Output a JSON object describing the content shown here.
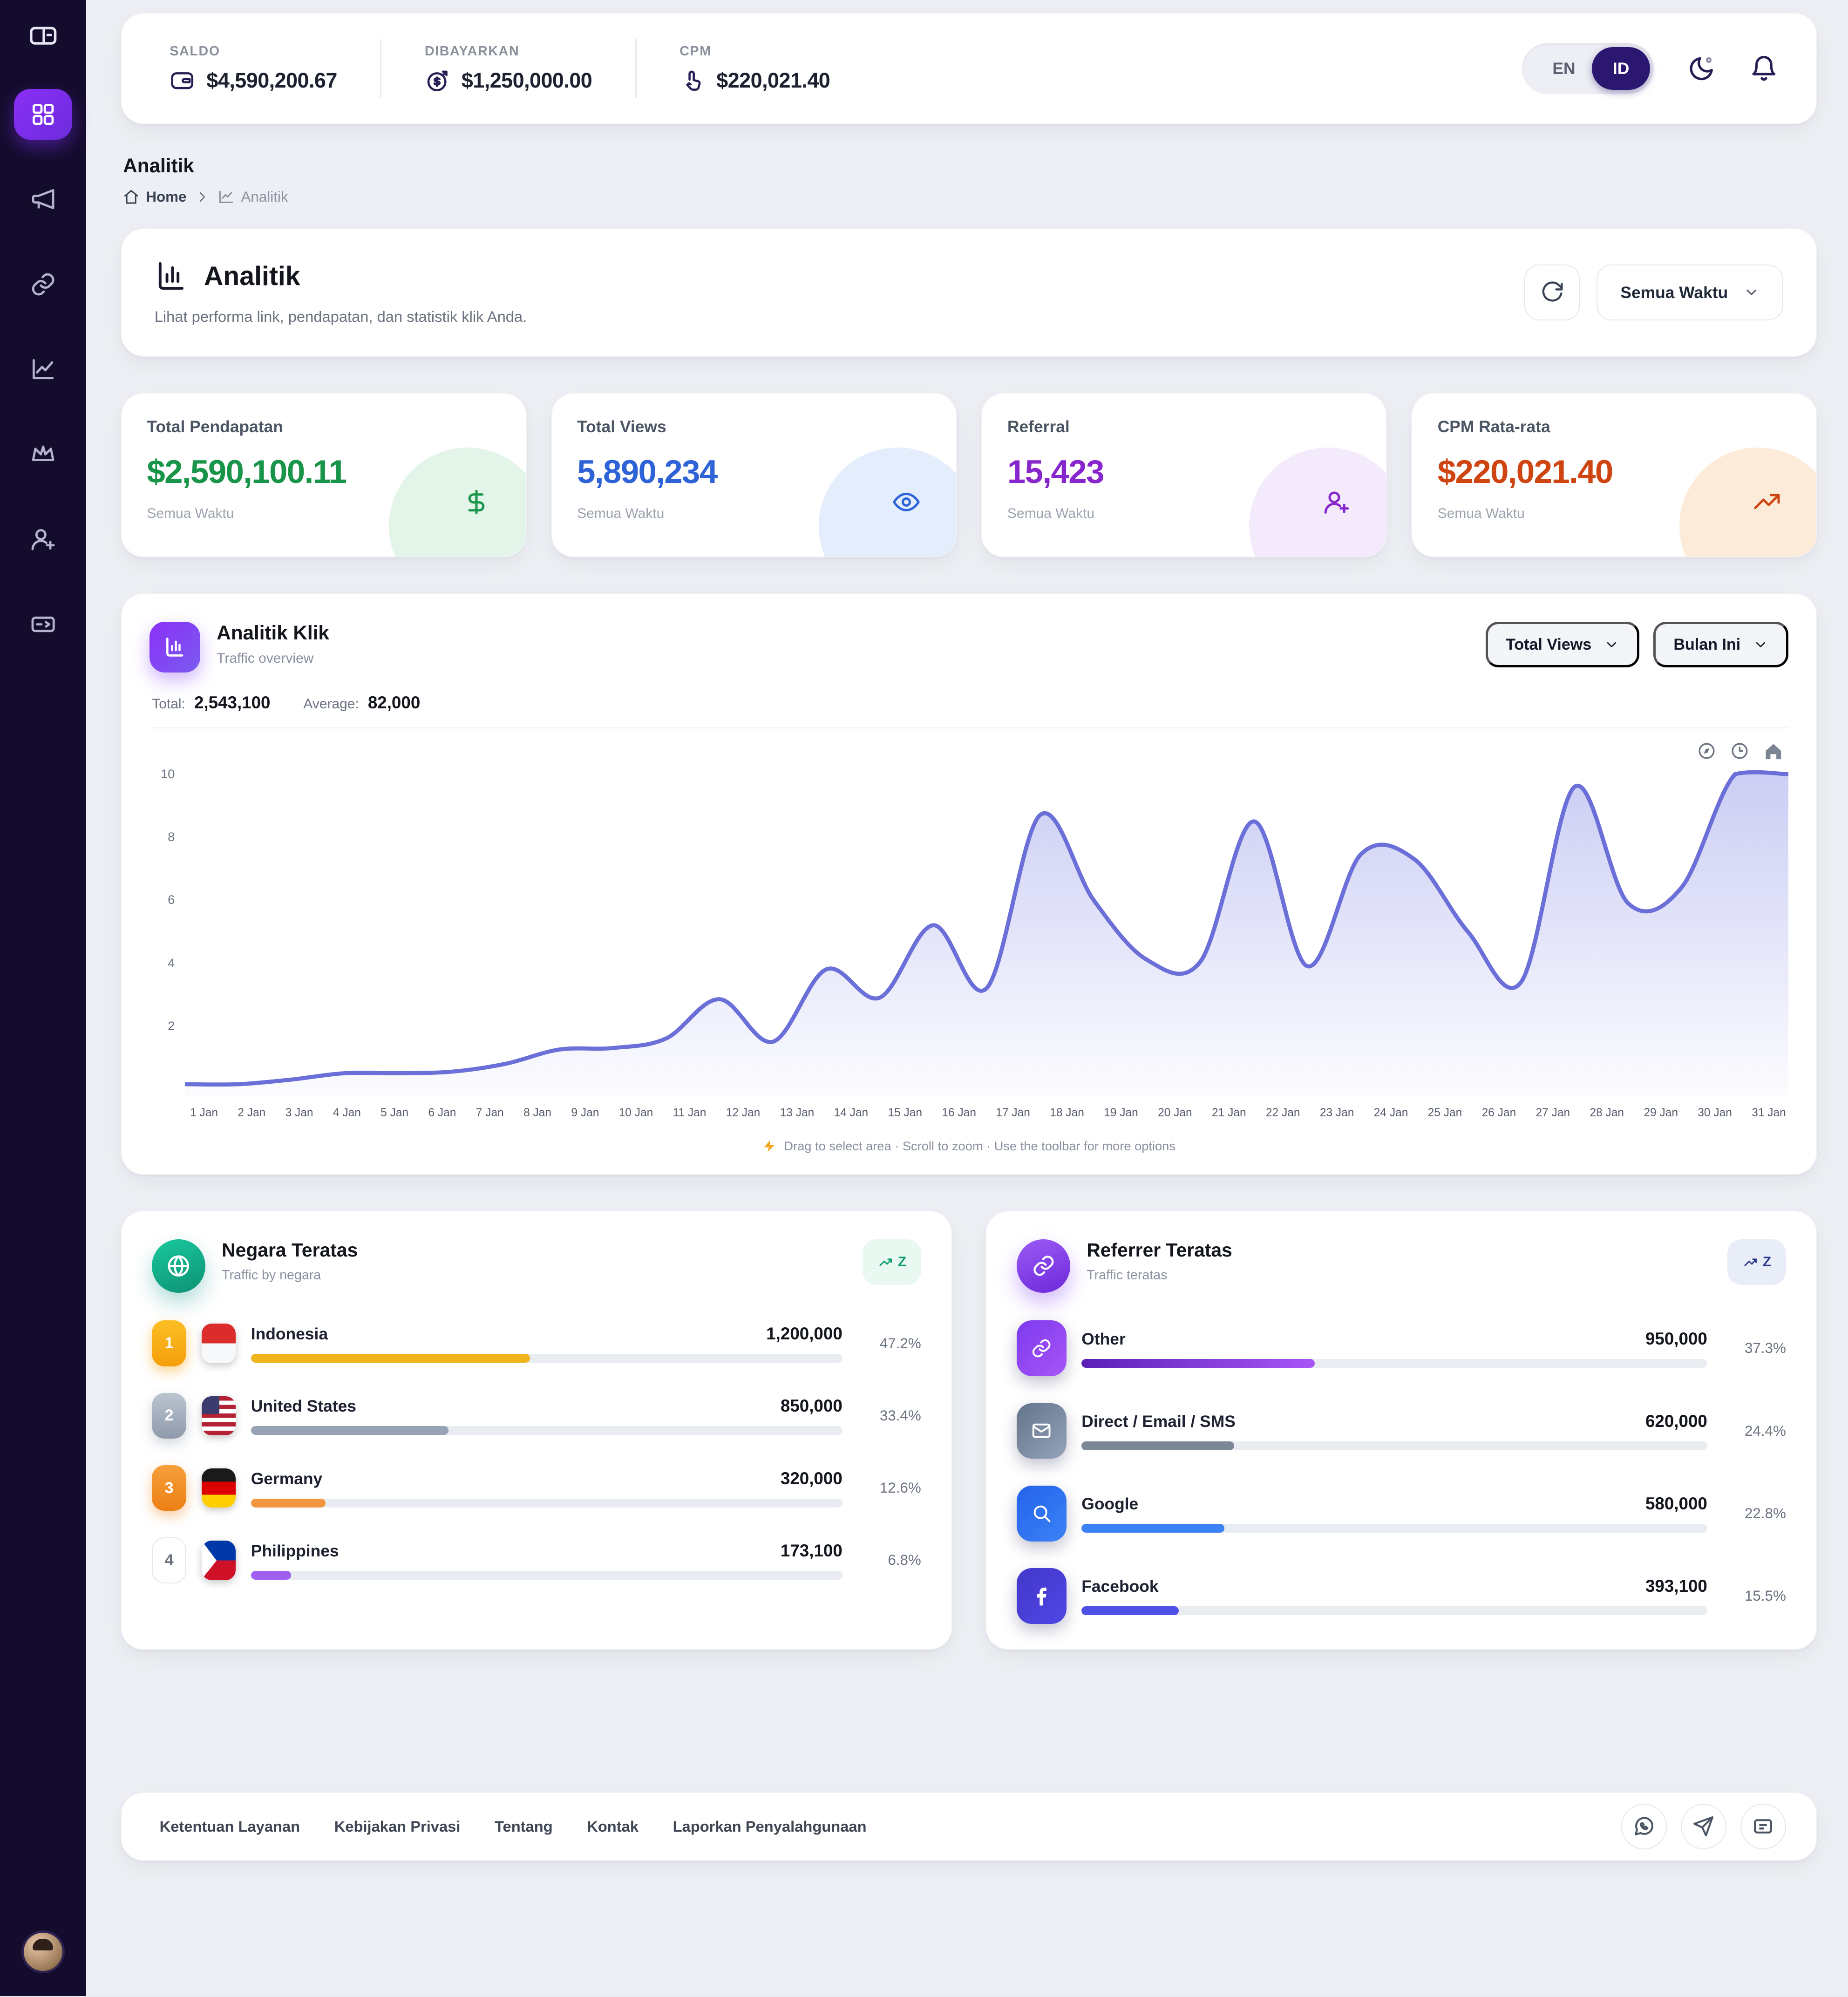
{
  "topbar": {
    "stats": [
      {
        "label": "SALDO",
        "value": "$4,590,200.67",
        "icon": "wallet-icon"
      },
      {
        "label": "DIBAYARKAN",
        "value": "$1,250,000.00",
        "icon": "coin-dollar-icon"
      },
      {
        "label": "CPM",
        "value": "$220,021.40",
        "icon": "tap-icon"
      }
    ],
    "language": {
      "en": "EN",
      "id": "ID",
      "selected": "ID"
    }
  },
  "breadcrumb": {
    "page_title": "Analitik",
    "home": "Home",
    "current": "Analitik"
  },
  "header": {
    "title": "Analitik",
    "subtitle": "Lihat performa link, pendapatan, dan statistik klik Anda.",
    "time_filter": "Semua Waktu"
  },
  "stats": [
    {
      "label": "Total Pendapatan",
      "value": "$2,590,100.11",
      "period": "Semua Waktu",
      "color": "#189549",
      "tint": "#e3f4e9",
      "icon": "dollar-icon"
    },
    {
      "label": "Total Views",
      "value": "5,890,234",
      "period": "Semua Waktu",
      "color": "#2e63d8",
      "tint": "#e3edfb",
      "icon": "eye-icon"
    },
    {
      "label": "Referral",
      "value": "15,423",
      "period": "Semua Waktu",
      "color": "#8826cd",
      "tint": "#f3eafb",
      "icon": "user-plus-icon"
    },
    {
      "label": "CPM Rata-rata",
      "value": "$220,021.40",
      "period": "Semua Waktu",
      "color": "#cf4512",
      "tint": "#fcebd8",
      "icon": "trending-up-icon"
    }
  ],
  "chart_card": {
    "title": "Analitik Klik",
    "subtitle": "Traffic overview",
    "total_label": "Total:",
    "total_value": "2,543,100",
    "average_label": "Average:",
    "average_value": "82,000",
    "metric_filter": "Total Views",
    "period_filter": "Bulan Ini",
    "toolbar_icons": [
      "compass-icon",
      "clock-icon",
      "home-icon"
    ],
    "hint": "Drag to select area · Scroll to zoom · Use the toolbar for more options"
  },
  "chart_data": {
    "type": "area",
    "title": "Analitik Klik — Traffic overview",
    "x": [
      "1 Jan",
      "2 Jan",
      "3 Jan",
      "4 Jan",
      "5 Jan",
      "6 Jan",
      "7 Jan",
      "8 Jan",
      "9 Jan",
      "10 Jan",
      "11 Jan",
      "12 Jan",
      "13 Jan",
      "14 Jan",
      "15 Jan",
      "16 Jan",
      "17 Jan",
      "18 Jan",
      "19 Jan",
      "20 Jan",
      "21 Jan",
      "22 Jan",
      "23 Jan",
      "24 Jan",
      "25 Jan",
      "26 Jan",
      "27 Jan",
      "28 Jan",
      "29 Jan",
      "30 Jan",
      "31 Jan"
    ],
    "values": [
      0.15,
      0.15,
      0.3,
      0.5,
      0.5,
      0.55,
      0.8,
      1.25,
      1.3,
      1.6,
      2.85,
      1.5,
      3.8,
      2.9,
      5.2,
      3.2,
      8.7,
      6.0,
      4.1,
      4.05,
      8.5,
      3.9,
      7.45,
      7.3,
      5.0,
      3.4,
      9.6,
      5.9,
      6.4,
      10,
      10
    ],
    "ylim": [
      0,
      10
    ],
    "yticks": [
      2,
      4,
      6,
      8,
      10
    ],
    "grid": false,
    "legend": false,
    "line_color": "#6b6fd8",
    "fill_color": "#babdf0",
    "total": 2543100,
    "average": 82000
  },
  "top_countries": {
    "title": "Negara Teratas",
    "subtitle": "Traffic by negara",
    "badge_icon": "trend-sort-icon",
    "badge_letter": "Z",
    "items": [
      {
        "rank": 1,
        "name": "Indonesia",
        "flag": "id",
        "value": "1,200,000",
        "percent": "47.2%",
        "pct": 47.2,
        "bar_color": "#f0b41c"
      },
      {
        "rank": 2,
        "name": "United States",
        "flag": "us",
        "value": "850,000",
        "percent": "33.4%",
        "pct": 33.4,
        "bar_color": "#97a3b4"
      },
      {
        "rank": 3,
        "name": "Germany",
        "flag": "de",
        "value": "320,000",
        "percent": "12.6%",
        "pct": 12.6,
        "bar_color": "#f2973f"
      },
      {
        "rank": 4,
        "name": "Philippines",
        "flag": "ph",
        "value": "173,100",
        "percent": "6.8%",
        "pct": 6.8,
        "bar_color": "#a05ff0"
      }
    ]
  },
  "top_referrers": {
    "title": "Referrer Teratas",
    "subtitle": "Traffic teratas",
    "badge_icon": "trend-sort-icon",
    "badge_letter": "Z",
    "items": [
      {
        "name": "Other",
        "icon": "link-icon",
        "tile": "linear-gradient(135deg,#7c3aed,#a855f7)",
        "value": "950,000",
        "percent": "37.3%",
        "pct": 37.3,
        "bar_color": "linear-gradient(90deg,#5b21b6,#a855f7)"
      },
      {
        "name": "Direct / Email / SMS",
        "icon": "mail-icon",
        "tile": "linear-gradient(135deg,#64748b,#94a3b8)",
        "value": "620,000",
        "percent": "24.4%",
        "pct": 24.4,
        "bar_color": "#7c8795"
      },
      {
        "name": "Google",
        "icon": "search-icon",
        "tile": "linear-gradient(135deg,#2563eb,#3b82f6)",
        "value": "580,000",
        "percent": "22.8%",
        "pct": 22.8,
        "bar_color": "#3b82f6"
      },
      {
        "name": "Facebook",
        "icon": "facebook-icon",
        "tile": "linear-gradient(135deg,#4338ca,#4f46e5)",
        "value": "393,100",
        "percent": "15.5%",
        "pct": 15.5,
        "bar_color": "#4f50e6"
      }
    ]
  },
  "footer": {
    "links": [
      "Ketentuan Layanan",
      "Kebijakan Privasi",
      "Tentang",
      "Kontak",
      "Laporkan Penyalahgunaan"
    ],
    "social_icons": [
      "whatsapp-icon",
      "telegram-icon",
      "card-icon"
    ]
  }
}
